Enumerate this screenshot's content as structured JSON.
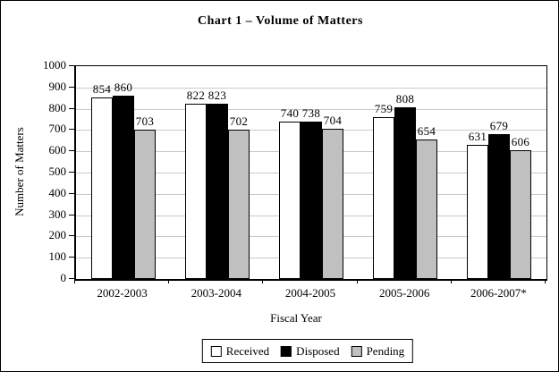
{
  "window": {
    "background": "#ffffff",
    "border_color": "#000000"
  },
  "chart_data": {
    "type": "bar",
    "title": "Chart 1 – Volume of Matters",
    "xlabel": "Fiscal Year",
    "ylabel": "Number of Matters",
    "ylim": [
      0,
      1000
    ],
    "ytick_step": 100,
    "grid": true,
    "legend_position": "bottom",
    "categories": [
      "2002-2003",
      "2003-2004",
      "2004-2005",
      "2005-2006",
      "2006-2007*"
    ],
    "series": [
      {
        "name": "Received",
        "color": "#ffffff",
        "values": [
          854,
          822,
          740,
          759,
          631
        ]
      },
      {
        "name": "Disposed",
        "color": "#000000",
        "values": [
          860,
          823,
          738,
          808,
          679
        ]
      },
      {
        "name": "Pending",
        "color": "#c0c0c0",
        "values": [
          703,
          702,
          704,
          654,
          606
        ]
      }
    ]
  },
  "colors": {
    "gridline": "#c9c9c9",
    "axis": "#000000",
    "text": "#000000",
    "bar_border": "#000000"
  }
}
